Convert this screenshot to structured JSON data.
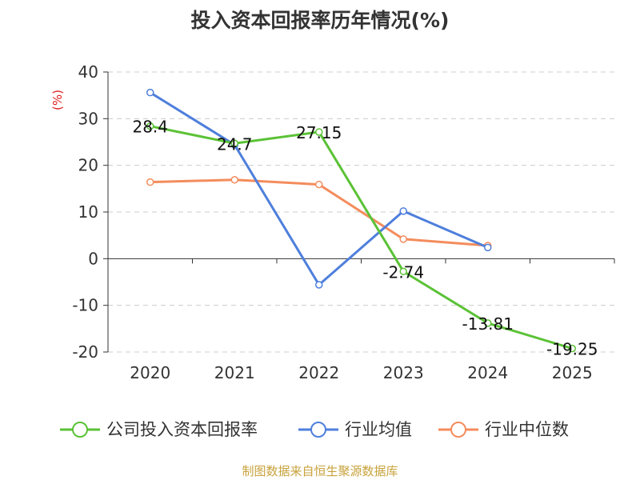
{
  "title": "投入资本回报率历年情况(%)",
  "footer": "制图数据来自恒生聚源数据库",
  "chart_data": {
    "type": "line",
    "title": "投入资本回报率历年情况(%)",
    "ylabel": "(%)",
    "xlabel": "",
    "ylim": [
      -20,
      40
    ],
    "yticks": [
      40,
      30,
      20,
      10,
      0,
      -10,
      -20
    ],
    "categories": [
      "2020",
      "2021",
      "2022",
      "2023",
      "2024",
      "2025"
    ],
    "series": [
      {
        "name": "公司投入资本回报率",
        "color": "#5bc236",
        "values": [
          28.4,
          24.7,
          27.15,
          -2.74,
          -13.81,
          -19.25
        ],
        "labels": [
          "28.4",
          "24.7",
          "27.15",
          "-2.74",
          "-13.81",
          "-19.25"
        ]
      },
      {
        "name": "行业均值",
        "color": "#4e7fdc",
        "values": [
          35.6,
          24.4,
          -5.6,
          10.2,
          2.4,
          null
        ]
      },
      {
        "name": "行业中位数",
        "color": "#f48c5c",
        "values": [
          16.4,
          16.9,
          15.9,
          4.2,
          2.8,
          null
        ]
      }
    ],
    "legend_position": "bottom",
    "grid": true
  }
}
